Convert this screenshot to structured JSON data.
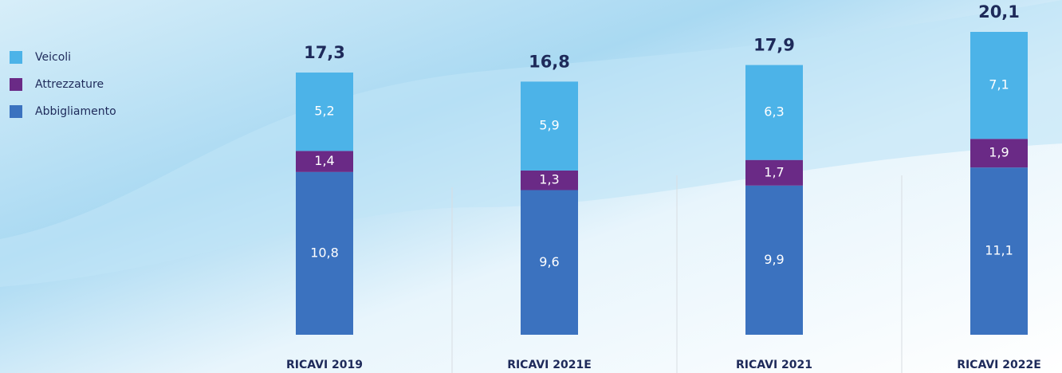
{
  "chart_data": {
    "type": "stacked-bar",
    "categories": [
      "RICAVI 2019",
      "RICAVI 2021E",
      "RICAVI 2021",
      "RICAVI 2022E"
    ],
    "series": [
      {
        "name": "Veicoli",
        "color": "#4cb3e8",
        "values": [
          5.2,
          5.9,
          6.3,
          7.1
        ],
        "value_labels": [
          "5,2",
          "5,9",
          "6,3",
          "7,1"
        ]
      },
      {
        "name": "Attrezzature",
        "color": "#6a2a86",
        "values": [
          1.4,
          1.3,
          1.7,
          1.9
        ],
        "value_labels": [
          "1,4",
          "1,3",
          "1,7",
          "1,9"
        ]
      },
      {
        "name": "Abbigliamento",
        "color": "#3b72bf",
        "values": [
          10.8,
          9.6,
          9.9,
          11.1
        ],
        "value_labels": [
          "10,8",
          "9,6",
          "9,9",
          "11,1"
        ]
      }
    ],
    "totals": [
      17.3,
      16.8,
      17.9,
      20.1
    ],
    "total_labels": [
      "17,3",
      "16,8",
      "17,9",
      "20,1"
    ]
  }
}
